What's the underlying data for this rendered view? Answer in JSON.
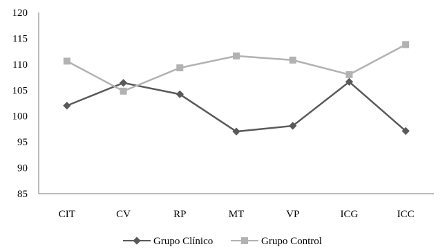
{
  "chart_data": {
    "type": "line",
    "categories": [
      "CIT",
      "CV",
      "RP",
      "MT",
      "VP",
      "ICG",
      "ICC"
    ],
    "ylim": [
      85,
      120
    ],
    "yticks": [
      85,
      90,
      95,
      100,
      105,
      110,
      115,
      120
    ],
    "grid": false,
    "legend_position": "bottom",
    "series": [
      {
        "name": "Grupo Clínico",
        "values": [
          102.0,
          106.4,
          104.2,
          97.0,
          98.1,
          106.6,
          97.1
        ],
        "color": "#595959",
        "marker": "diamond"
      },
      {
        "name": "Grupo Control",
        "values": [
          110.6,
          104.8,
          109.3,
          111.6,
          110.8,
          108.0,
          113.8
        ],
        "color": "#b2b2b2",
        "marker": "square"
      }
    ]
  }
}
